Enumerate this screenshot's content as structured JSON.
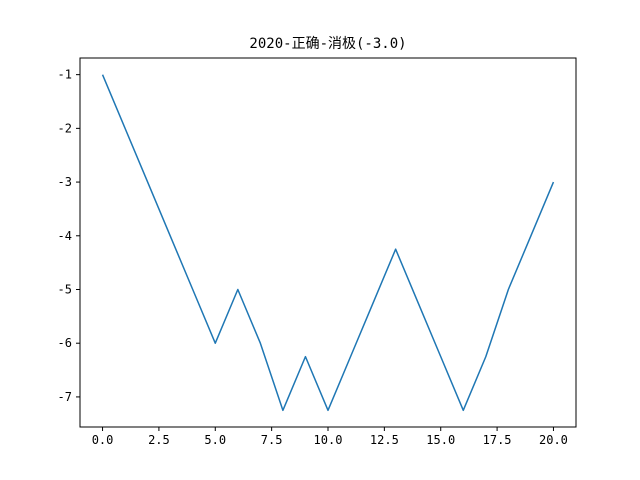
{
  "chart_data": {
    "type": "line",
    "title": "2020-正确-消极(-3.0)",
    "xlabel": "",
    "ylabel": "",
    "xlim": [
      -1.0,
      21.0
    ],
    "ylim": [
      -7.56,
      -0.69
    ],
    "grid": false,
    "x_ticks": [
      0.0,
      2.5,
      5.0,
      7.5,
      10.0,
      12.5,
      15.0,
      17.5,
      20.0
    ],
    "x_tick_labels": [
      "0.0",
      "2.5",
      "5.0",
      "7.5",
      "10.0",
      "12.5",
      "15.0",
      "17.5",
      "20.0"
    ],
    "y_ticks": [
      -1,
      -2,
      -3,
      -4,
      -5,
      -6,
      -7
    ],
    "y_tick_labels": [
      "-1",
      "-2",
      "-3",
      "-4",
      "-5",
      "-6",
      "-7"
    ],
    "series": [
      {
        "color": "#1f77b4",
        "x": [
          0,
          1,
          2,
          3,
          4,
          5,
          6,
          7,
          8,
          9,
          10,
          11,
          12,
          13,
          14,
          15,
          16,
          17,
          18,
          19,
          20
        ],
        "values": [
          -1.0,
          -2.0,
          -3.0,
          -4.0,
          -5.0,
          -6.0,
          -5.0,
          -6.0,
          -7.25,
          -6.25,
          -7.25,
          -6.25,
          -5.25,
          -4.25,
          -5.25,
          -6.25,
          -7.25,
          -6.25,
          -5.0,
          -4.0,
          -3.0
        ]
      }
    ]
  }
}
